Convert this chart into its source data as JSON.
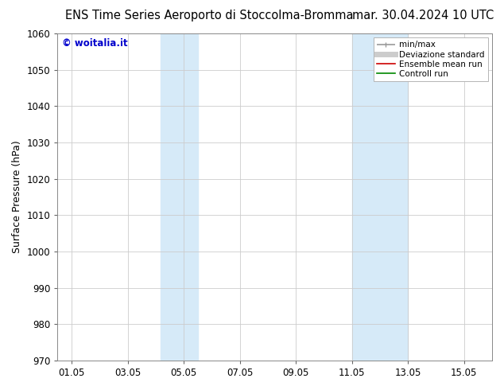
{
  "title_left": "ENS Time Series Aeroporto di Stoccolma-Bromma",
  "title_right": "mar. 30.04.2024 10 UTC",
  "ylabel": "Surface Pressure (hPa)",
  "ylim": [
    970,
    1060
  ],
  "yticks": [
    970,
    980,
    990,
    1000,
    1010,
    1020,
    1030,
    1040,
    1050,
    1060
  ],
  "xlim": [
    0.5,
    16.0
  ],
  "xtick_labels": [
    "01.05",
    "03.05",
    "05.05",
    "07.05",
    "09.05",
    "11.05",
    "13.05",
    "15.05"
  ],
  "xtick_days": [
    1,
    3,
    5,
    7,
    9,
    11,
    13,
    15
  ],
  "shaded_regions": [
    {
      "start_day": 4.17,
      "end_day": 5.5
    },
    {
      "start_day": 11.0,
      "end_day": 13.0
    }
  ],
  "shaded_color": "#d6eaf8",
  "watermark_text": "© woitalia.it",
  "watermark_color": "#0000cc",
  "legend_entries": [
    {
      "label": "min/max",
      "color": "#999999",
      "lw": 1.2
    },
    {
      "label": "Deviazione standard",
      "color": "#cccccc",
      "lw": 5
    },
    {
      "label": "Ensemble mean run",
      "color": "#cc0000",
      "lw": 1.2
    },
    {
      "label": "Controll run",
      "color": "#008800",
      "lw": 1.2
    }
  ],
  "bg_color": "#ffffff",
  "grid_color": "#cccccc",
  "title_fontsize": 10.5,
  "tick_fontsize": 8.5,
  "ylabel_fontsize": 9,
  "legend_fontsize": 7.5
}
